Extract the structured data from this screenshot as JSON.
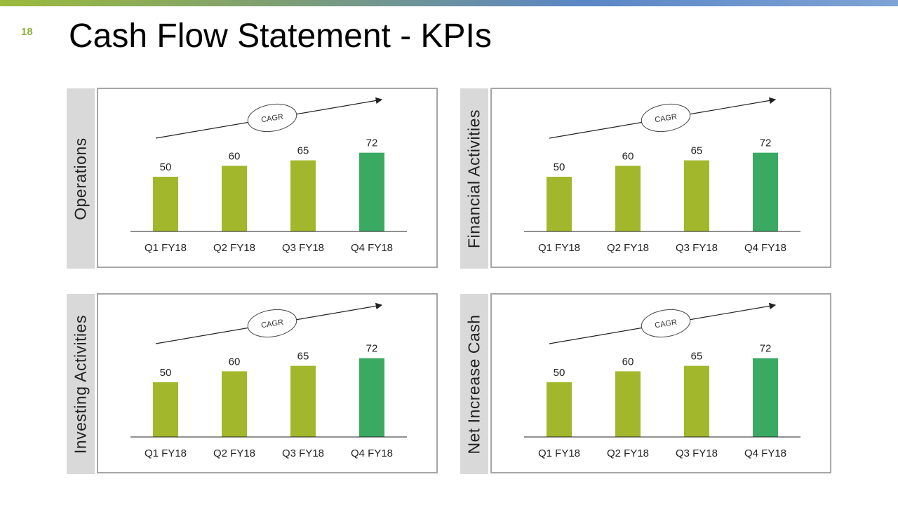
{
  "slide": {
    "number": "18",
    "title": "Cash Flow Statement - KPIs"
  },
  "colors": {
    "bar": "#a2b72b",
    "bar_highlight": "#3aaa63",
    "label_bg": "#d9d9d9",
    "border": "#a6a6a6"
  },
  "chart_data": [
    {
      "type": "bar",
      "title": "Operations",
      "categories": [
        "Q1 FY18",
        "Q2 FY18",
        "Q3 FY18",
        "Q4 FY18"
      ],
      "values": [
        50,
        60,
        65,
        72
      ],
      "annotation": "CAGR",
      "highlight_index": 3,
      "ylim": [
        0,
        80
      ]
    },
    {
      "type": "bar",
      "title": "Financial Activities",
      "categories": [
        "Q1 FY18",
        "Q2 FY18",
        "Q3 FY18",
        "Q4 FY18"
      ],
      "values": [
        50,
        60,
        65,
        72
      ],
      "annotation": "CAGR",
      "highlight_index": 3,
      "ylim": [
        0,
        80
      ]
    },
    {
      "type": "bar",
      "title": "Investing Activities",
      "categories": [
        "Q1 FY18",
        "Q2 FY18",
        "Q3 FY18",
        "Q4 FY18"
      ],
      "values": [
        50,
        60,
        65,
        72
      ],
      "annotation": "CAGR",
      "highlight_index": 3,
      "ylim": [
        0,
        80
      ]
    },
    {
      "type": "bar",
      "title": "Net Increase Cash",
      "categories": [
        "Q1 FY18",
        "Q2 FY18",
        "Q3 FY18",
        "Q4 FY18"
      ],
      "values": [
        50,
        60,
        65,
        72
      ],
      "annotation": "CAGR",
      "highlight_index": 3,
      "ylim": [
        0,
        80
      ]
    }
  ]
}
